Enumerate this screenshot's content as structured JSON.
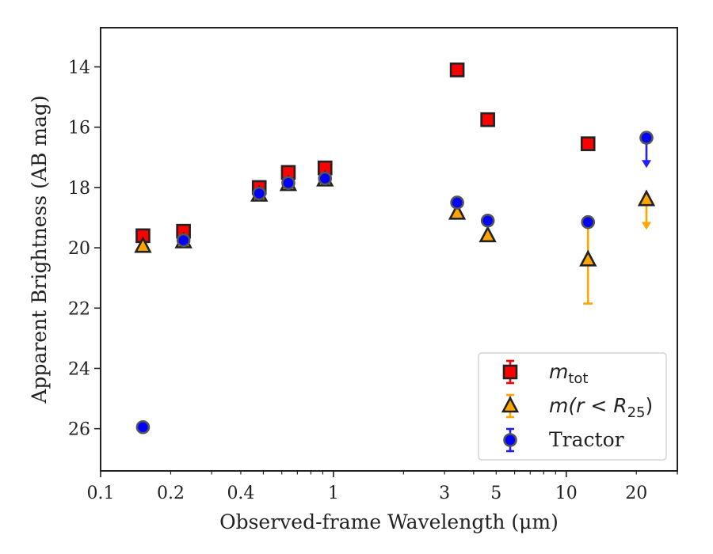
{
  "chart_data": {
    "type": "scatter",
    "xlabel": "Observed-frame Wavelength (μm)",
    "ylabel": "Apparent Brightness (AB mag)",
    "x_scale": "log",
    "x_range": [
      0.1,
      30
    ],
    "y_range": [
      27.4,
      12.7
    ],
    "y_inverted": true,
    "x_tick_labels": [
      {
        "value": 0.1,
        "label": "0.1"
      },
      {
        "value": 0.2,
        "label": "0.2"
      },
      {
        "value": 0.4,
        "label": "0.4"
      },
      {
        "value": 1,
        "label": "1"
      },
      {
        "value": 3,
        "label": "3"
      },
      {
        "value": 5,
        "label": "5"
      },
      {
        "value": 10,
        "label": "10"
      },
      {
        "value": 20,
        "label": "20"
      }
    ],
    "y_tick_labels": [
      {
        "value": 14,
        "label": "14"
      },
      {
        "value": 16,
        "label": "16"
      },
      {
        "value": 18,
        "label": "18"
      },
      {
        "value": 20,
        "label": "20"
      },
      {
        "value": 22,
        "label": "22"
      },
      {
        "value": 24,
        "label": "24"
      },
      {
        "value": 26,
        "label": "26"
      }
    ],
    "legend_position": "lower-right",
    "series": [
      {
        "name": "m_tot",
        "legend_label": {
          "main": "m",
          "sub": "tot",
          "suffix": ""
        },
        "marker": "square",
        "color": "#ff0000",
        "error_color": "#ff0000",
        "points": [
          {
            "x": 0.152,
            "y": 19.6
          },
          {
            "x": 0.227,
            "y": 19.45
          },
          {
            "x": 0.48,
            "y": 18.0
          },
          {
            "x": 0.64,
            "y": 17.5
          },
          {
            "x": 0.92,
            "y": 17.35
          },
          {
            "x": 3.4,
            "y": 14.1
          },
          {
            "x": 4.6,
            "y": 15.75
          },
          {
            "x": 12.4,
            "y": 16.55
          }
        ]
      },
      {
        "name": "m(r<R_25)",
        "legend_label": {
          "main": "m(r < R",
          "sub": "25",
          "suffix": ")"
        },
        "marker": "triangle",
        "color": "#ffa500",
        "error_color": "#ffa500",
        "points": [
          {
            "x": 0.152,
            "y": 19.95
          },
          {
            "x": 0.227,
            "y": 19.8
          },
          {
            "x": 0.48,
            "y": 18.25
          },
          {
            "x": 0.64,
            "y": 17.9
          },
          {
            "x": 0.92,
            "y": 17.75
          },
          {
            "x": 3.4,
            "y": 18.85
          },
          {
            "x": 4.6,
            "y": 19.6
          },
          {
            "x": 12.4,
            "y": 20.4,
            "yerr_low": 21.85,
            "yerr_high": 19.1
          },
          {
            "x": 22.1,
            "y": 18.4,
            "upper_limit": true,
            "arrow_to": 19.35
          }
        ]
      },
      {
        "name": "Tractor",
        "legend_label": {
          "main": "Tractor",
          "sub": "",
          "suffix": ""
        },
        "marker": "circle",
        "color": "#0000ff",
        "error_color": "#2020ff",
        "points": [
          {
            "x": 0.152,
            "y": 25.95
          },
          {
            "x": 0.227,
            "y": 19.75
          },
          {
            "x": 0.48,
            "y": 18.2
          },
          {
            "x": 0.64,
            "y": 17.85
          },
          {
            "x": 0.92,
            "y": 17.7
          },
          {
            "x": 3.4,
            "y": 18.5
          },
          {
            "x": 4.6,
            "y": 19.1
          },
          {
            "x": 12.4,
            "y": 19.15
          },
          {
            "x": 22.1,
            "y": 16.35,
            "upper_limit": true,
            "arrow_to": 17.3
          }
        ]
      }
    ]
  }
}
